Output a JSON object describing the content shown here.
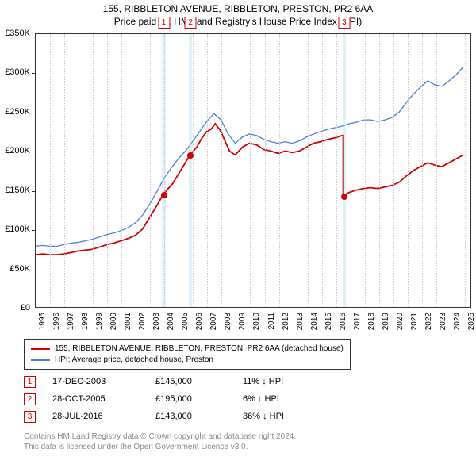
{
  "title": "155, RIBBLETON AVENUE, RIBBLETON, PRESTON, PR2 6AA",
  "subtitle": "Price paid vs. HM Land Registry's House Price Index (HPI)",
  "chart": {
    "type": "line",
    "xlim": [
      1995,
      2025.5
    ],
    "ylim": [
      0,
      350000
    ],
    "ytick_step": 50000,
    "ytick_labels": [
      "£0",
      "£50K",
      "£100K",
      "£150K",
      "£200K",
      "£250K",
      "£300K",
      "£350K"
    ],
    "xticks": [
      1995,
      1996,
      1997,
      1998,
      1999,
      2000,
      2001,
      2002,
      2003,
      2004,
      2005,
      2006,
      2007,
      2008,
      2009,
      2010,
      2011,
      2012,
      2013,
      2014,
      2015,
      2016,
      2017,
      2018,
      2019,
      2020,
      2021,
      2022,
      2023,
      2024,
      2025
    ],
    "background_color": "#ffffff",
    "grid_color": "#cccccc",
    "series": [
      {
        "name": "property",
        "label": "155, RIBBLETON AVENUE, RIBBLETON, PRESTON, PR2 6AA (detached house)",
        "color": "#d00000",
        "line_width": 1.8,
        "data": [
          [
            1995.0,
            67000
          ],
          [
            1995.5,
            68000
          ],
          [
            1996.0,
            67000
          ],
          [
            1996.5,
            67000
          ],
          [
            1997.0,
            68000
          ],
          [
            1997.5,
            70000
          ],
          [
            1998.0,
            72000
          ],
          [
            1998.5,
            73000
          ],
          [
            1999.0,
            74000
          ],
          [
            1999.5,
            77000
          ],
          [
            2000.0,
            80000
          ],
          [
            2000.5,
            82000
          ],
          [
            2001.0,
            85000
          ],
          [
            2001.5,
            88000
          ],
          [
            2002.0,
            92000
          ],
          [
            2002.5,
            100000
          ],
          [
            2003.0,
            115000
          ],
          [
            2003.5,
            130000
          ],
          [
            2003.96,
            145000
          ],
          [
            2004.3,
            152000
          ],
          [
            2004.6,
            158000
          ],
          [
            2005.0,
            170000
          ],
          [
            2005.5,
            185000
          ],
          [
            2005.82,
            195000
          ],
          [
            2006.3,
            205000
          ],
          [
            2006.6,
            215000
          ],
          [
            2007.0,
            225000
          ],
          [
            2007.3,
            228000
          ],
          [
            2007.6,
            235000
          ],
          [
            2008.0,
            225000
          ],
          [
            2008.3,
            212000
          ],
          [
            2008.6,
            200000
          ],
          [
            2009.0,
            195000
          ],
          [
            2009.5,
            205000
          ],
          [
            2010.0,
            210000
          ],
          [
            2010.5,
            208000
          ],
          [
            2011.0,
            202000
          ],
          [
            2011.5,
            200000
          ],
          [
            2012.0,
            197000
          ],
          [
            2012.5,
            200000
          ],
          [
            2013.0,
            198000
          ],
          [
            2013.5,
            200000
          ],
          [
            2014.0,
            205000
          ],
          [
            2014.5,
            210000
          ],
          [
            2015.0,
            212000
          ],
          [
            2015.5,
            215000
          ],
          [
            2016.0,
            217000
          ],
          [
            2016.5,
            220000
          ],
          [
            2016.57,
            220000
          ],
          [
            2016.571,
            143000
          ],
          [
            2017.0,
            147000
          ],
          [
            2017.5,
            150000
          ],
          [
            2018.0,
            152000
          ],
          [
            2018.5,
            153000
          ],
          [
            2019.0,
            152000
          ],
          [
            2019.5,
            154000
          ],
          [
            2020.0,
            156000
          ],
          [
            2020.5,
            160000
          ],
          [
            2021.0,
            168000
          ],
          [
            2021.5,
            175000
          ],
          [
            2022.0,
            180000
          ],
          [
            2022.5,
            185000
          ],
          [
            2023.0,
            182000
          ],
          [
            2023.5,
            180000
          ],
          [
            2024.0,
            185000
          ],
          [
            2024.5,
            190000
          ],
          [
            2025.0,
            195000
          ]
        ]
      },
      {
        "name": "hpi",
        "label": "HPI: Average price, detached house, Preston",
        "color": "#5080d0",
        "line_width": 1.3,
        "data": [
          [
            1995.0,
            78000
          ],
          [
            1995.5,
            79000
          ],
          [
            1996.0,
            78000
          ],
          [
            1996.5,
            78000
          ],
          [
            1997.0,
            80000
          ],
          [
            1997.5,
            82000
          ],
          [
            1998.0,
            83000
          ],
          [
            1998.5,
            85000
          ],
          [
            1999.0,
            87000
          ],
          [
            1999.5,
            90000
          ],
          [
            2000.0,
            93000
          ],
          [
            2000.5,
            95000
          ],
          [
            2001.0,
            98000
          ],
          [
            2001.5,
            102000
          ],
          [
            2002.0,
            108000
          ],
          [
            2002.5,
            118000
          ],
          [
            2003.0,
            132000
          ],
          [
            2003.5,
            148000
          ],
          [
            2004.0,
            165000
          ],
          [
            2004.5,
            178000
          ],
          [
            2005.0,
            190000
          ],
          [
            2005.5,
            200000
          ],
          [
            2006.0,
            212000
          ],
          [
            2006.5,
            225000
          ],
          [
            2007.0,
            238000
          ],
          [
            2007.5,
            248000
          ],
          [
            2008.0,
            240000
          ],
          [
            2008.5,
            222000
          ],
          [
            2009.0,
            210000
          ],
          [
            2009.5,
            218000
          ],
          [
            2010.0,
            222000
          ],
          [
            2010.5,
            220000
          ],
          [
            2011.0,
            215000
          ],
          [
            2011.5,
            212000
          ],
          [
            2012.0,
            210000
          ],
          [
            2012.5,
            212000
          ],
          [
            2013.0,
            210000
          ],
          [
            2013.5,
            213000
          ],
          [
            2014.0,
            218000
          ],
          [
            2014.5,
            222000
          ],
          [
            2015.0,
            225000
          ],
          [
            2015.5,
            228000
          ],
          [
            2016.0,
            230000
          ],
          [
            2016.5,
            232000
          ],
          [
            2017.0,
            235000
          ],
          [
            2017.5,
            237000
          ],
          [
            2018.0,
            240000
          ],
          [
            2018.5,
            240000
          ],
          [
            2019.0,
            238000
          ],
          [
            2019.5,
            240000
          ],
          [
            2020.0,
            243000
          ],
          [
            2020.5,
            250000
          ],
          [
            2021.0,
            262000
          ],
          [
            2021.5,
            273000
          ],
          [
            2022.0,
            282000
          ],
          [
            2022.5,
            290000
          ],
          [
            2023.0,
            285000
          ],
          [
            2023.5,
            283000
          ],
          [
            2024.0,
            290000
          ],
          [
            2024.5,
            298000
          ],
          [
            2025.0,
            308000
          ]
        ]
      }
    ],
    "sale_markers": [
      {
        "n": "1",
        "x": 2003.96,
        "y": 145000
      },
      {
        "n": "2",
        "x": 2005.82,
        "y": 195000
      },
      {
        "n": "3",
        "x": 2016.57,
        "y": 143000
      }
    ],
    "vband_width_years": 0.25,
    "vband_color": "rgba(173,216,230,0.35)",
    "marker_box_top_offset": -22
  },
  "legend": {
    "items": [
      {
        "color": "#d00000",
        "label": "155, RIBBLETON AVENUE, RIBBLETON, PRESTON, PR2 6AA (detached house)"
      },
      {
        "color": "#5080d0",
        "label": "HPI: Average price, detached house, Preston"
      }
    ]
  },
  "sales": [
    {
      "n": "1",
      "date": "17-DEC-2003",
      "price": "£145,000",
      "diff": "11% ↓ HPI"
    },
    {
      "n": "2",
      "date": "28-OCT-2005",
      "price": "£195,000",
      "diff": "6% ↓ HPI"
    },
    {
      "n": "3",
      "date": "28-JUL-2016",
      "price": "£143,000",
      "diff": "36% ↓ HPI"
    }
  ],
  "attribution": {
    "line1": "Contains HM Land Registry data © Crown copyright and database right 2024.",
    "line2": "This data is licensed under the Open Government Licence v3.0."
  }
}
